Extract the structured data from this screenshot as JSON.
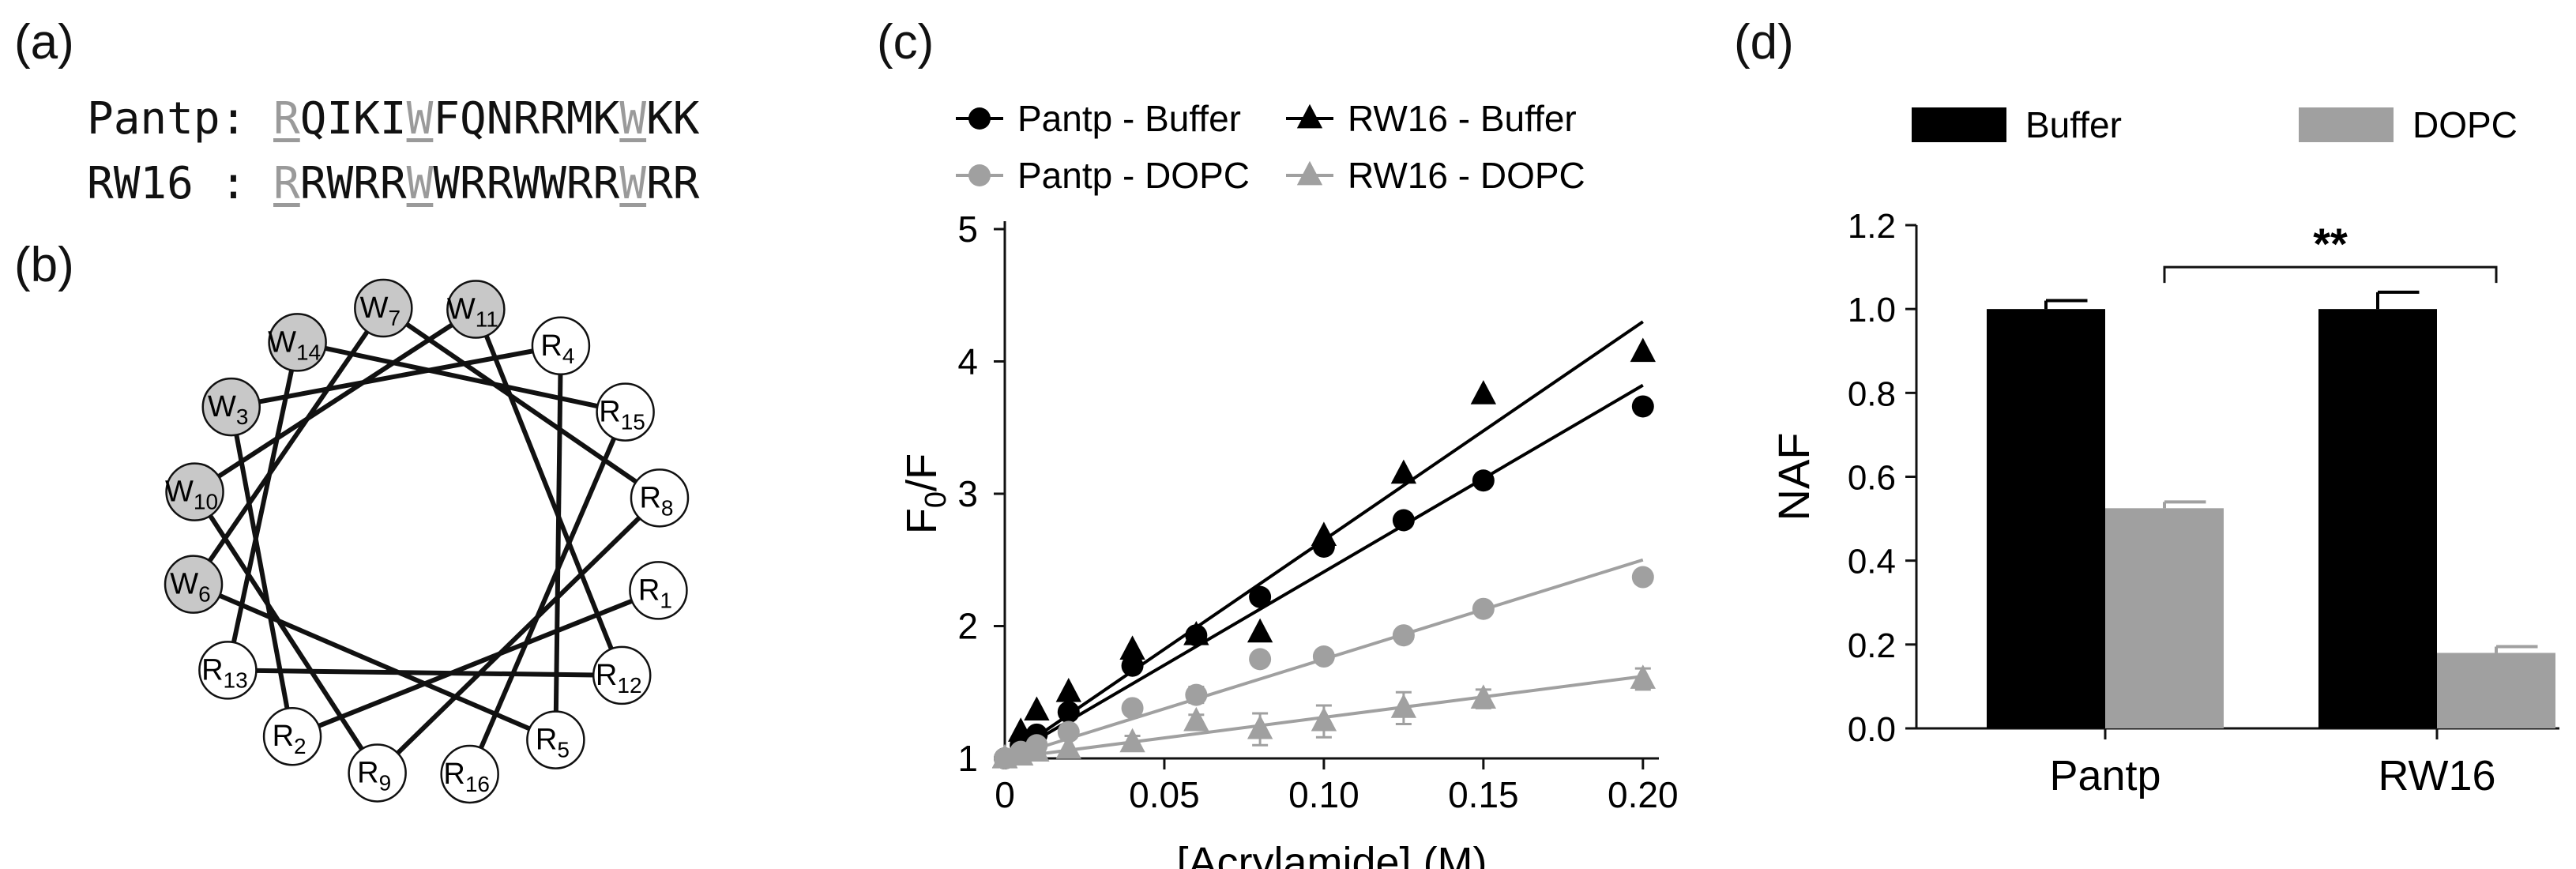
{
  "panels": {
    "a": "(a)",
    "b": "(b)",
    "c": "(c)",
    "d": "(d)"
  },
  "sequences": [
    {
      "name": "Pantp",
      "separator": ": ",
      "residues": [
        "R",
        "Q",
        "I",
        "K",
        "I",
        "W",
        "F",
        "Q",
        "N",
        "R",
        "R",
        "M",
        "K",
        "W",
        "K",
        "K"
      ],
      "highlight": [
        0,
        5,
        13
      ]
    },
    {
      "name": "RW16 ",
      "separator": ": ",
      "residues": [
        "R",
        "R",
        "W",
        "R",
        "R",
        "W",
        "W",
        "R",
        "R",
        "W",
        "W",
        "R",
        "R",
        "W",
        "R",
        "R"
      ],
      "highlight": [
        0,
        5,
        13
      ]
    }
  ],
  "helical_wheel": {
    "residues": [
      {
        "letter": "W",
        "sub": "11",
        "shaded": true
      },
      {
        "letter": "R",
        "sub": "4",
        "shaded": false
      },
      {
        "letter": "R",
        "sub": "15",
        "shaded": false
      },
      {
        "letter": "R",
        "sub": "8",
        "shaded": false
      },
      {
        "letter": "R",
        "sub": "1",
        "shaded": false
      },
      {
        "letter": "R",
        "sub": "12",
        "shaded": false
      },
      {
        "letter": "R",
        "sub": "5",
        "shaded": false
      },
      {
        "letter": "R",
        "sub": "16",
        "shaded": false
      },
      {
        "letter": "R",
        "sub": "9",
        "shaded": false
      },
      {
        "letter": "R",
        "sub": "2",
        "shaded": false
      },
      {
        "letter": "R",
        "sub": "13",
        "shaded": false
      },
      {
        "letter": "W",
        "sub": "6",
        "shaded": true
      },
      {
        "letter": "W",
        "sub": "10",
        "shaded": true
      },
      {
        "letter": "W",
        "sub": "3",
        "shaded": true
      },
      {
        "letter": "W",
        "sub": "14",
        "shaded": true
      },
      {
        "letter": "W",
        "sub": "7",
        "shaded": true
      }
    ],
    "colors": {
      "shaded": "#c8c8c8",
      "open": "#ffffff"
    }
  },
  "chart_data": [
    {
      "type": "scatter",
      "title": "",
      "xlabel": "[Acrylamide] (M)",
      "ylabel": "F0/F",
      "ylabel_main": "F",
      "ylabel_sub": "0",
      "ylabel_tail": "/F",
      "xlim": [
        0,
        0.205
      ],
      "ylim": [
        1,
        5
      ],
      "xticks": [
        0,
        0.05,
        0.1,
        0.15,
        0.2
      ],
      "xtick_labels": [
        "0",
        "0.05",
        "0.10",
        "0.15",
        "0.20"
      ],
      "yticks": [
        1,
        2,
        3,
        4,
        5
      ],
      "ytick_labels": [
        "1",
        "2",
        "3",
        "4",
        "5"
      ],
      "legend_position": "top",
      "series": [
        {
          "name": "Pantp - Buffer",
          "marker": "circle",
          "color": "#000000",
          "x": [
            0,
            0.005,
            0.01,
            0.02,
            0.04,
            0.06,
            0.08,
            0.1,
            0.125,
            0.15,
            0.2
          ],
          "y": [
            1.0,
            1.1,
            1.18,
            1.35,
            1.7,
            1.93,
            2.22,
            2.6,
            2.8,
            3.1,
            3.66
          ],
          "fit_slope": 14.1
        },
        {
          "name": "RW16 - Buffer",
          "marker": "triangle",
          "color": "#000000",
          "x": [
            0,
            0.005,
            0.01,
            0.02,
            0.04,
            0.06,
            0.08,
            0.1,
            0.125,
            0.15,
            0.2
          ],
          "y": [
            1.0,
            1.2,
            1.36,
            1.5,
            1.82,
            1.93,
            1.95,
            2.68,
            3.15,
            3.75,
            4.07
          ],
          "fit_slope": 16.5
        },
        {
          "name": "Pantp - DOPC",
          "marker": "circle",
          "color": "#a0a0a0",
          "x": [
            0,
            0.005,
            0.01,
            0.02,
            0.04,
            0.06,
            0.08,
            0.1,
            0.125,
            0.15,
            0.2
          ],
          "y": [
            1.0,
            1.05,
            1.1,
            1.2,
            1.38,
            1.48,
            1.75,
            1.77,
            1.93,
            2.13,
            2.37
          ],
          "err": [
            0,
            0,
            0,
            0,
            0,
            0.06,
            0,
            0,
            0,
            0,
            0
          ],
          "fit_slope": 7.5
        },
        {
          "name": "RW16 - DOPC",
          "marker": "triangle",
          "color": "#a0a0a0",
          "x": [
            0,
            0.005,
            0.01,
            0.02,
            0.04,
            0.06,
            0.08,
            0.1,
            0.125,
            0.15,
            0.2
          ],
          "y": [
            1.0,
            1.02,
            1.05,
            1.07,
            1.12,
            1.28,
            1.22,
            1.28,
            1.38,
            1.45,
            1.6
          ],
          "err": [
            0,
            0,
            0,
            0,
            0.05,
            0.05,
            0.12,
            0.12,
            0.12,
            0.07,
            0.08
          ],
          "fit_slope": 3.1
        }
      ]
    },
    {
      "type": "bar",
      "title": "",
      "xlabel": "",
      "ylabel": "NAF",
      "ylim": [
        0,
        1.2
      ],
      "yticks": [
        0,
        0.2,
        0.4,
        0.6,
        0.8,
        1.0,
        1.2
      ],
      "ytick_labels": [
        "0.0",
        "0.2",
        "0.4",
        "0.6",
        "0.8",
        "1.0",
        "1.2"
      ],
      "categories": [
        "Pantp",
        "RW16"
      ],
      "legend_position": "top",
      "series": [
        {
          "name": "Buffer",
          "color": "#000000",
          "values": [
            1.0,
            1.0
          ],
          "err": [
            0.02,
            0.04
          ]
        },
        {
          "name": "DOPC",
          "color": "#a0a0a0",
          "values": [
            0.525,
            0.18
          ],
          "err": [
            0.015,
            0.015
          ]
        }
      ],
      "significance": "**"
    }
  ]
}
